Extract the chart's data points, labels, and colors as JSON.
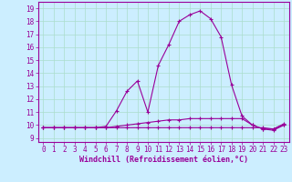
{
  "xlabel": "Windchill (Refroidissement éolien,°C)",
  "x_values": [
    0,
    1,
    2,
    3,
    4,
    5,
    6,
    7,
    8,
    9,
    10,
    11,
    12,
    13,
    14,
    15,
    16,
    17,
    18,
    19,
    20,
    21,
    22,
    23
  ],
  "line1_y": [
    9.8,
    9.8,
    9.8,
    9.8,
    9.8,
    9.8,
    9.8,
    9.8,
    9.8,
    9.8,
    9.8,
    9.8,
    9.8,
    9.8,
    9.8,
    9.8,
    9.8,
    9.8,
    9.8,
    9.8,
    9.8,
    9.8,
    9.7,
    10.1
  ],
  "line2_y": [
    9.8,
    9.8,
    9.8,
    9.8,
    9.8,
    9.8,
    9.8,
    9.9,
    10.0,
    10.1,
    10.2,
    10.3,
    10.4,
    10.4,
    10.5,
    10.5,
    10.5,
    10.5,
    10.5,
    10.5,
    10.0,
    9.7,
    9.7,
    10.0
  ],
  "line3_y": [
    9.8,
    9.8,
    9.8,
    9.8,
    9.8,
    9.8,
    9.9,
    11.1,
    12.6,
    13.4,
    11.0,
    14.6,
    16.2,
    18.0,
    18.5,
    18.8,
    18.2,
    16.8,
    13.1,
    10.7,
    10.0,
    9.7,
    9.6,
    10.0
  ],
  "line_color": "#990099",
  "bg_color": "#cceeff",
  "grid_color": "#aaddcc",
  "ylim": [
    8.7,
    19.5
  ],
  "xlim": [
    -0.5,
    23.5
  ],
  "yticks": [
    9,
    10,
    11,
    12,
    13,
    14,
    15,
    16,
    17,
    18,
    19
  ],
  "xticks": [
    0,
    1,
    2,
    3,
    4,
    5,
    6,
    7,
    8,
    9,
    10,
    11,
    12,
    13,
    14,
    15,
    16,
    17,
    18,
    19,
    20,
    21,
    22,
    23
  ],
  "marker": "+",
  "linewidth": 0.8,
  "markersize": 3,
  "tick_fontsize": 5.5,
  "xlabel_fontsize": 6.0
}
